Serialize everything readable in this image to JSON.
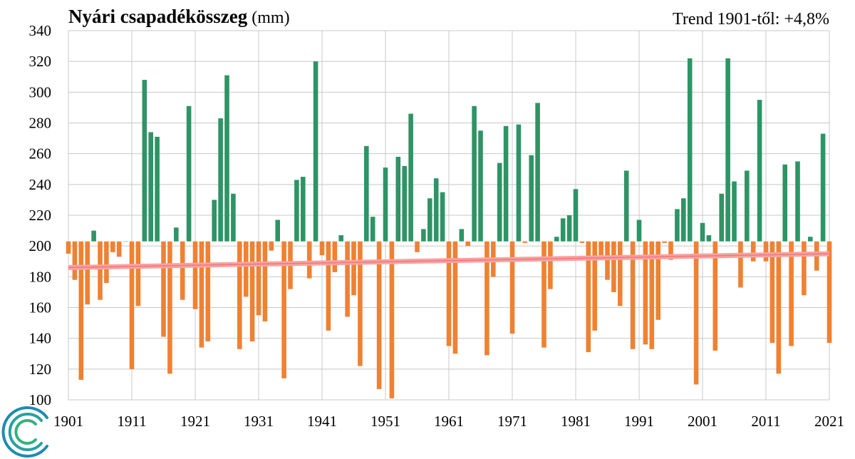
{
  "chart_data": {
    "type": "bar",
    "title": "Nyári csapadékösszeg",
    "title_unit": "(mm)",
    "trend_label": "Trend 1901-től: +4,8%",
    "baseline": 203,
    "ylim": [
      100,
      340
    ],
    "yticks": [
      100,
      120,
      140,
      160,
      180,
      200,
      220,
      240,
      260,
      280,
      300,
      320,
      340
    ],
    "xticks": [
      1901,
      1911,
      1921,
      1931,
      1941,
      1951,
      1961,
      1971,
      1981,
      1991,
      2001,
      2011,
      2021
    ],
    "xlim": [
      1901,
      2021
    ],
    "grid": true,
    "colors": {
      "above": "#2e9465",
      "below": "#ef8133",
      "trend": "#f7a3a3",
      "trend_core": "#f05a5a",
      "grid": "#c8c8c8"
    },
    "trend": {
      "start": [
        1901,
        186
      ],
      "end": [
        2021,
        195
      ]
    },
    "years": [
      1901,
      1902,
      1903,
      1904,
      1905,
      1906,
      1907,
      1908,
      1909,
      1910,
      1911,
      1912,
      1913,
      1914,
      1915,
      1916,
      1917,
      1918,
      1919,
      1920,
      1921,
      1922,
      1923,
      1924,
      1925,
      1926,
      1927,
      1928,
      1929,
      1930,
      1931,
      1932,
      1933,
      1934,
      1935,
      1936,
      1937,
      1938,
      1939,
      1940,
      1941,
      1942,
      1943,
      1944,
      1945,
      1946,
      1947,
      1948,
      1949,
      1950,
      1951,
      1952,
      1953,
      1954,
      1955,
      1956,
      1957,
      1958,
      1959,
      1960,
      1961,
      1962,
      1963,
      1964,
      1965,
      1966,
      1967,
      1968,
      1969,
      1970,
      1971,
      1972,
      1973,
      1974,
      1975,
      1976,
      1977,
      1978,
      1979,
      1980,
      1981,
      1982,
      1983,
      1984,
      1985,
      1986,
      1987,
      1988,
      1989,
      1990,
      1991,
      1992,
      1993,
      1994,
      1995,
      1996,
      1997,
      1998,
      1999,
      2000,
      2001,
      2002,
      2003,
      2004,
      2005,
      2006,
      2007,
      2008,
      2009,
      2010,
      2011,
      2012,
      2013,
      2014,
      2015,
      2016,
      2017,
      2018,
      2019,
      2020,
      2021
    ],
    "values": [
      195,
      178,
      113,
      162,
      210,
      165,
      176,
      196,
      193,
      203,
      120,
      161,
      308,
      274,
      271,
      141,
      117,
      212,
      165,
      291,
      159,
      134,
      138,
      230,
      283,
      311,
      234,
      133,
      167,
      138,
      155,
      151,
      197,
      217,
      114,
      172,
      243,
      245,
      179,
      320,
      194,
      145,
      183,
      207,
      154,
      168,
      122,
      265,
      219,
      107,
      251,
      101,
      258,
      252,
      286,
      196,
      211,
      231,
      244,
      235,
      135,
      130,
      211,
      200,
      291,
      275,
      129,
      180,
      254,
      278,
      143,
      279,
      202,
      259,
      293,
      134,
      172,
      206,
      218,
      220,
      237,
      202,
      131,
      145,
      194,
      178,
      170,
      161,
      249,
      133,
      217,
      136,
      133,
      152,
      202,
      191,
      224,
      231,
      322,
      110,
      215,
      207,
      132,
      234,
      322,
      242,
      173,
      249,
      190,
      295,
      190,
      137,
      117,
      253,
      135,
      255,
      168,
      206,
      184,
      273,
      137
    ]
  }
}
